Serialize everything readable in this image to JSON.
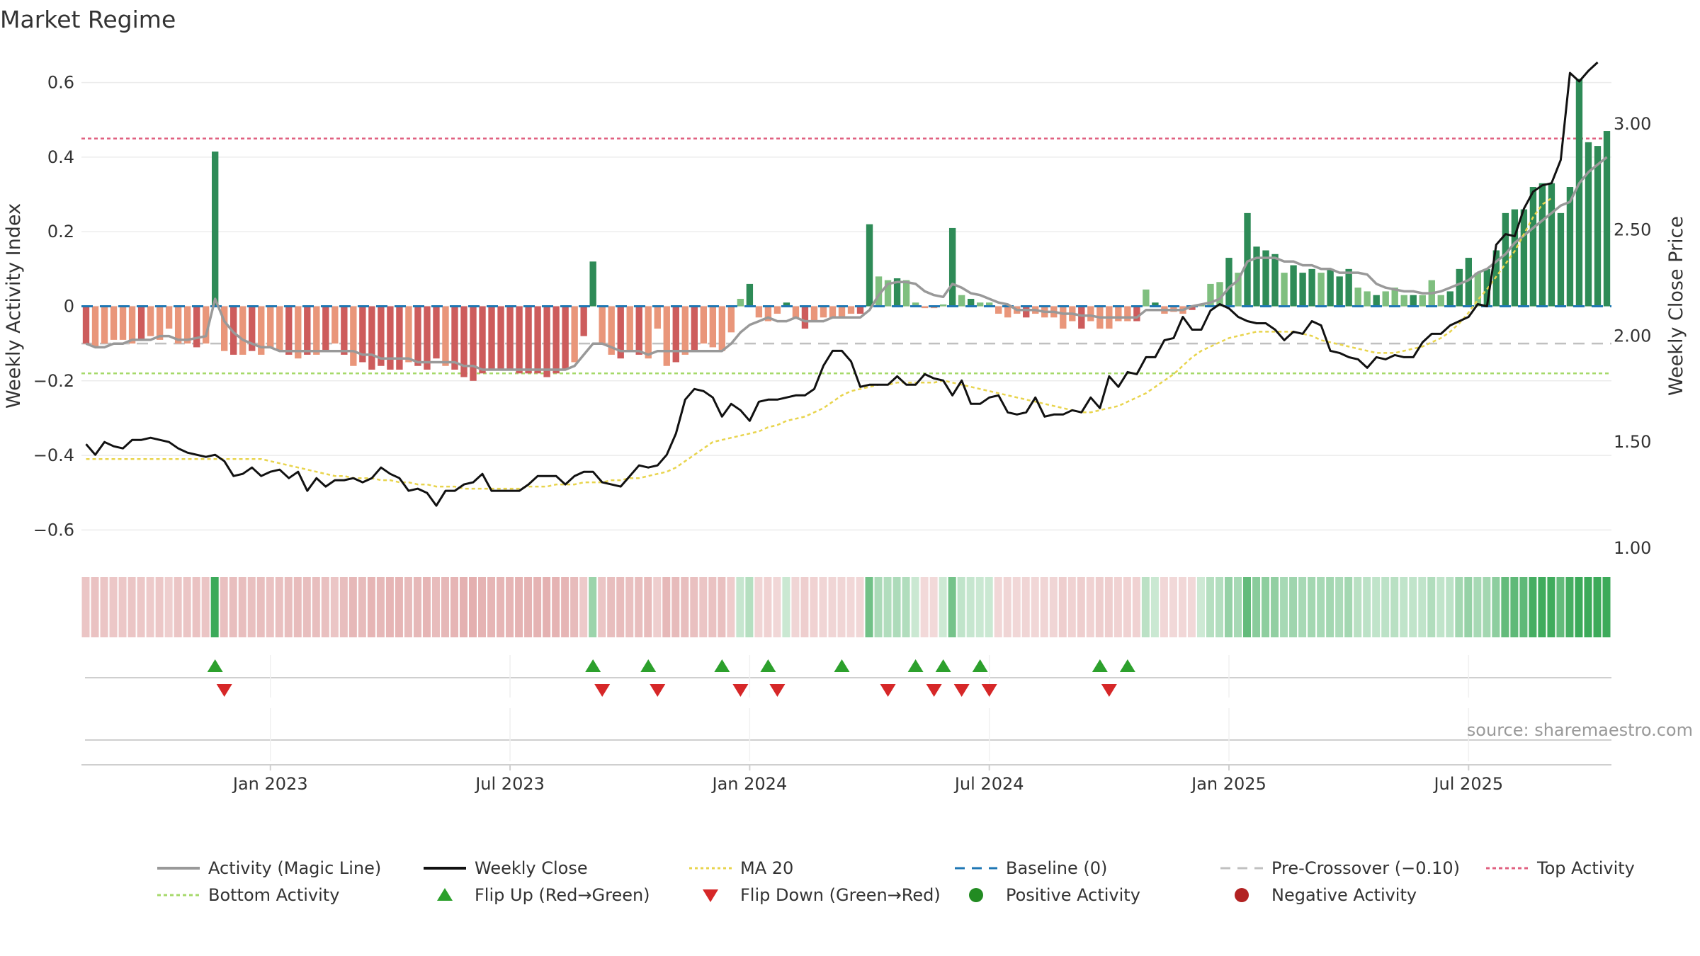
{
  "title": "Market Regime",
  "source": "source: sharemaestro.com",
  "chart_data": {
    "type": "bar",
    "ylabel_left": "Weekly Activity Index",
    "ylabel_right": "Weekly Close Price",
    "yticks_left": [
      "0.6",
      "0.4",
      "0.2",
      "0",
      "−0.2",
      "−0.4",
      "−0.6"
    ],
    "yticks_right": [
      "3.00",
      "2.50",
      "2.00",
      "1.50",
      "1.00"
    ],
    "ylim_left": [
      -0.66,
      0.66
    ],
    "ylim_right": [
      0.98,
      3.3
    ],
    "xticks": [
      "Jan 2023",
      "Jul 2023",
      "Jan 2024",
      "Jul 2024",
      "Jan 2025",
      "Jul 2025"
    ],
    "lines": {
      "top_activity": 0.45,
      "bottom_activity": -0.18,
      "pre_crossover": -0.1,
      "baseline": 0
    },
    "activity_bars": [
      -0.1,
      -0.11,
      -0.1,
      -0.09,
      -0.09,
      -0.1,
      -0.09,
      -0.08,
      -0.09,
      -0.06,
      -0.1,
      -0.1,
      -0.11,
      -0.1,
      0.415,
      -0.12,
      -0.13,
      -0.13,
      -0.12,
      -0.13,
      -0.11,
      -0.12,
      -0.13,
      -0.14,
      -0.13,
      -0.13,
      -0.12,
      -0.1,
      -0.13,
      -0.16,
      -0.15,
      -0.17,
      -0.16,
      -0.17,
      -0.17,
      -0.15,
      -0.16,
      -0.17,
      -0.14,
      -0.16,
      -0.17,
      -0.19,
      -0.2,
      -0.18,
      -0.17,
      -0.17,
      -0.17,
      -0.18,
      -0.18,
      -0.18,
      -0.19,
      -0.18,
      -0.17,
      -0.15,
      -0.08,
      0.12,
      -0.1,
      -0.13,
      -0.14,
      -0.12,
      -0.13,
      -0.14,
      -0.06,
      -0.16,
      -0.15,
      -0.13,
      -0.12,
      -0.1,
      -0.11,
      -0.12,
      -0.07,
      0.02,
      0.06,
      -0.03,
      -0.04,
      -0.02,
      0.01,
      -0.03,
      -0.06,
      -0.04,
      -0.03,
      -0.03,
      -0.03,
      -0.02,
      -0.02,
      0.22,
      0.08,
      0.07,
      0.075,
      0.07,
      0.01,
      -0.005,
      -0.005,
      0.005,
      0.21,
      0.03,
      0.02,
      0.01,
      0.01,
      -0.02,
      -0.03,
      -0.02,
      -0.03,
      -0.02,
      -0.03,
      -0.03,
      -0.06,
      -0.04,
      -0.06,
      -0.04,
      -0.06,
      -0.06,
      -0.04,
      -0.04,
      -0.04,
      0.045,
      0.01,
      -0.02,
      -0.015,
      -0.02,
      -0.01,
      0.005,
      0.06,
      0.065,
      0.13,
      0.09,
      0.25,
      0.16,
      0.15,
      0.14,
      0.09,
      0.11,
      0.09,
      0.1,
      0.09,
      0.1,
      0.08,
      0.1,
      0.05,
      0.04,
      0.03,
      0.04,
      0.05,
      0.03,
      0.03,
      0.03,
      0.07,
      0.03,
      0.04,
      0.1,
      0.13,
      0.09,
      0.1,
      0.15,
      0.25,
      0.26,
      0.26,
      0.32,
      0.33,
      0.33,
      0.25,
      0.32,
      0.61,
      0.44,
      0.43,
      0.47
    ],
    "magic_line": [
      -0.1,
      -0.11,
      -0.11,
      -0.1,
      -0.1,
      -0.09,
      -0.09,
      -0.09,
      -0.08,
      -0.08,
      -0.09,
      -0.09,
      -0.085,
      -0.08,
      0.02,
      -0.04,
      -0.07,
      -0.09,
      -0.1,
      -0.11,
      -0.11,
      -0.12,
      -0.12,
      -0.12,
      -0.12,
      -0.12,
      -0.12,
      -0.12,
      -0.12,
      -0.12,
      -0.13,
      -0.13,
      -0.14,
      -0.14,
      -0.14,
      -0.14,
      -0.15,
      -0.15,
      -0.15,
      -0.15,
      -0.15,
      -0.16,
      -0.16,
      -0.17,
      -0.17,
      -0.17,
      -0.17,
      -0.17,
      -0.17,
      -0.17,
      -0.17,
      -0.17,
      -0.17,
      -0.16,
      -0.13,
      -0.1,
      -0.1,
      -0.11,
      -0.12,
      -0.12,
      -0.12,
      -0.13,
      -0.12,
      -0.12,
      -0.12,
      -0.12,
      -0.12,
      -0.12,
      -0.12,
      -0.12,
      -0.1,
      -0.07,
      -0.05,
      -0.04,
      -0.03,
      -0.04,
      -0.04,
      -0.03,
      -0.04,
      -0.04,
      -0.04,
      -0.03,
      -0.03,
      -0.03,
      -0.03,
      -0.01,
      0.03,
      0.06,
      0.065,
      0.065,
      0.06,
      0.04,
      0.03,
      0.025,
      0.06,
      0.05,
      0.035,
      0.03,
      0.02,
      0.01,
      0.005,
      -0.01,
      -0.01,
      -0.01,
      -0.015,
      -0.015,
      -0.02,
      -0.02,
      -0.025,
      -0.025,
      -0.03,
      -0.03,
      -0.03,
      -0.03,
      -0.03,
      -0.01,
      -0.01,
      -0.01,
      -0.01,
      -0.01,
      0,
      0.005,
      0.01,
      0.02,
      0.05,
      0.07,
      0.12,
      0.13,
      0.13,
      0.13,
      0.12,
      0.12,
      0.11,
      0.11,
      0.1,
      0.1,
      0.09,
      0.09,
      0.09,
      0.085,
      0.06,
      0.05,
      0.045,
      0.04,
      0.04,
      0.035,
      0.035,
      0.04,
      0.05,
      0.06,
      0.07,
      0.09,
      0.1,
      0.12,
      0.14,
      0.17,
      0.19,
      0.21,
      0.23,
      0.25,
      0.27,
      0.28,
      0.33,
      0.36,
      0.38,
      0.4
    ],
    "weekly_close": [
      1.49,
      1.44,
      1.5,
      1.48,
      1.47,
      1.51,
      1.51,
      1.52,
      1.51,
      1.5,
      1.47,
      1.45,
      1.44,
      1.43,
      1.44,
      1.41,
      1.34,
      1.35,
      1.38,
      1.34,
      1.36,
      1.37,
      1.33,
      1.36,
      1.27,
      1.33,
      1.29,
      1.32,
      1.32,
      1.33,
      1.31,
      1.33,
      1.38,
      1.35,
      1.33,
      1.27,
      1.28,
      1.26,
      1.2,
      1.27,
      1.27,
      1.3,
      1.31,
      1.35,
      1.27,
      1.27,
      1.27,
      1.27,
      1.3,
      1.34,
      1.34,
      1.34,
      1.3,
      1.34,
      1.36,
      1.36,
      1.31,
      1.3,
      1.29,
      1.34,
      1.39,
      1.38,
      1.39,
      1.44,
      1.54,
      1.7,
      1.75,
      1.74,
      1.71,
      1.62,
      1.68,
      1.65,
      1.6,
      1.69,
      1.7,
      1.7,
      1.71,
      1.72,
      1.72,
      1.75,
      1.86,
      1.93,
      1.93,
      1.88,
      1.76,
      1.77,
      1.77,
      1.77,
      1.81,
      1.77,
      1.77,
      1.82,
      1.8,
      1.79,
      1.72,
      1.79,
      1.68,
      1.68,
      1.71,
      1.72,
      1.64,
      1.63,
      1.64,
      1.71,
      1.62,
      1.63,
      1.63,
      1.65,
      1.64,
      1.71,
      1.66,
      1.81,
      1.76,
      1.83,
      1.82,
      1.9,
      1.9,
      1.98,
      1.99,
      2.09,
      2.03,
      2.03,
      2.12,
      2.15,
      2.13,
      2.09,
      2.07,
      2.06,
      2.06,
      2.03,
      1.98,
      2.02,
      2.01,
      2.07,
      2.05,
      1.93,
      1.92,
      1.9,
      1.89,
      1.85,
      1.9,
      1.89,
      1.91,
      1.9,
      1.9,
      1.97,
      2.01,
      2.01,
      2.05,
      2.07,
      2.09,
      2.15,
      2.14,
      2.43,
      2.48,
      2.47,
      2.6,
      2.68,
      2.71,
      2.72,
      2.83,
      3.24,
      3.2,
      3.25,
      3.29
    ],
    "ma20": [
      1.42,
      1.42,
      1.42,
      1.42,
      1.42,
      1.42,
      1.42,
      1.42,
      1.42,
      1.42,
      1.42,
      1.42,
      1.42,
      1.42,
      1.42,
      1.42,
      1.42,
      1.42,
      1.42,
      1.42,
      1.41,
      1.4,
      1.39,
      1.38,
      1.37,
      1.36,
      1.35,
      1.34,
      1.34,
      1.33,
      1.33,
      1.33,
      1.32,
      1.32,
      1.31,
      1.31,
      1.3,
      1.3,
      1.29,
      1.29,
      1.29,
      1.28,
      1.28,
      1.28,
      1.28,
      1.28,
      1.28,
      1.28,
      1.29,
      1.29,
      1.29,
      1.3,
      1.3,
      1.3,
      1.31,
      1.31,
      1.31,
      1.32,
      1.32,
      1.33,
      1.33,
      1.34,
      1.35,
      1.36,
      1.38,
      1.41,
      1.44,
      1.47,
      1.5,
      1.51,
      1.52,
      1.53,
      1.54,
      1.55,
      1.57,
      1.58,
      1.6,
      1.61,
      1.62,
      1.64,
      1.66,
      1.69,
      1.72,
      1.74,
      1.75,
      1.76,
      1.77,
      1.77,
      1.78,
      1.78,
      1.78,
      1.78,
      1.78,
      1.79,
      1.78,
      1.77,
      1.76,
      1.75,
      1.74,
      1.73,
      1.72,
      1.71,
      1.7,
      1.69,
      1.68,
      1.67,
      1.66,
      1.65,
      1.64,
      1.64,
      1.65,
      1.66,
      1.67,
      1.69,
      1.71,
      1.73,
      1.76,
      1.79,
      1.82,
      1.86,
      1.9,
      1.93,
      1.95,
      1.97,
      1.99,
      2,
      2.01,
      2.02,
      2.02,
      2.02,
      2.02,
      2.02,
      2.01,
      2,
      1.98,
      1.97,
      1.96,
      1.95,
      1.94,
      1.93,
      1.92,
      1.92,
      1.92,
      1.93,
      1.94,
      1.95,
      1.97,
      1.99,
      2.02,
      2.06,
      2.11,
      2.17,
      2.22,
      2.28,
      2.34,
      2.4,
      2.48,
      2.56,
      2.62,
      2.65
    ],
    "flip_up_index": [
      14,
      55,
      61,
      69,
      74,
      82,
      90,
      93,
      97,
      110,
      113
    ],
    "flip_down_index": [
      15,
      56,
      62,
      71,
      75,
      87,
      92,
      95,
      98,
      111
    ],
    "legend": [
      "Activity (Magic Line)",
      "Weekly Close",
      "MA 20",
      "Baseline (0)",
      "Pre-Crossover (−0.10)",
      "Top Activity",
      "Bottom Activity",
      "Flip Up (Red→Green)",
      "Flip Down (Green→Red)",
      "Positive Activity",
      "Negative Activity"
    ],
    "colors": {
      "pos_strong": "#2e8b57",
      "pos_light": "#7fbf7f",
      "neg_strong": "#cd5c5c",
      "neg_light": "#e9967a",
      "magic": "#999999",
      "close": "#111111",
      "ma20": "#e8d44d",
      "baseline": "#1f77b4",
      "pre": "#c0c0c0",
      "top": "#e06080",
      "bottom": "#a6d96a",
      "flip_up": "#2ca02c",
      "flip_down": "#d62728"
    }
  }
}
